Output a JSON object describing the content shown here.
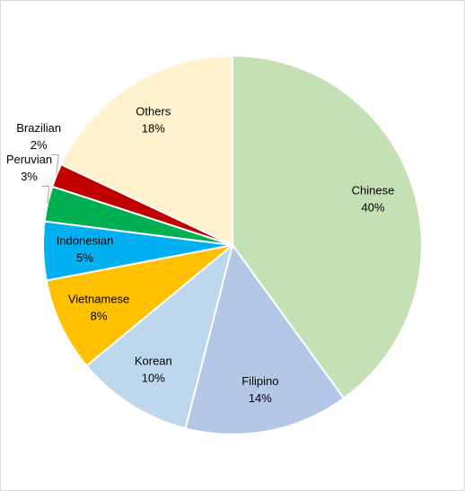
{
  "chart_data": {
    "type": "pie",
    "categories": [
      "Chinese",
      "Filipino",
      "Korean",
      "Vietnamese",
      "Indonesian",
      "Peruvian",
      "Brazilian",
      "Others"
    ],
    "values": [
      40,
      14,
      10,
      8,
      5,
      3,
      2,
      18
    ],
    "value_labels": [
      "40%",
      "14%",
      "10%",
      "8%",
      "5%",
      "3%",
      "2%",
      "18%"
    ],
    "colors": [
      "#c5e0b4",
      "#b4c7e7",
      "#bdd7ee",
      "#ffc000",
      "#00b0f0",
      "#00b050",
      "#c00000",
      "#fff2cc"
    ]
  }
}
